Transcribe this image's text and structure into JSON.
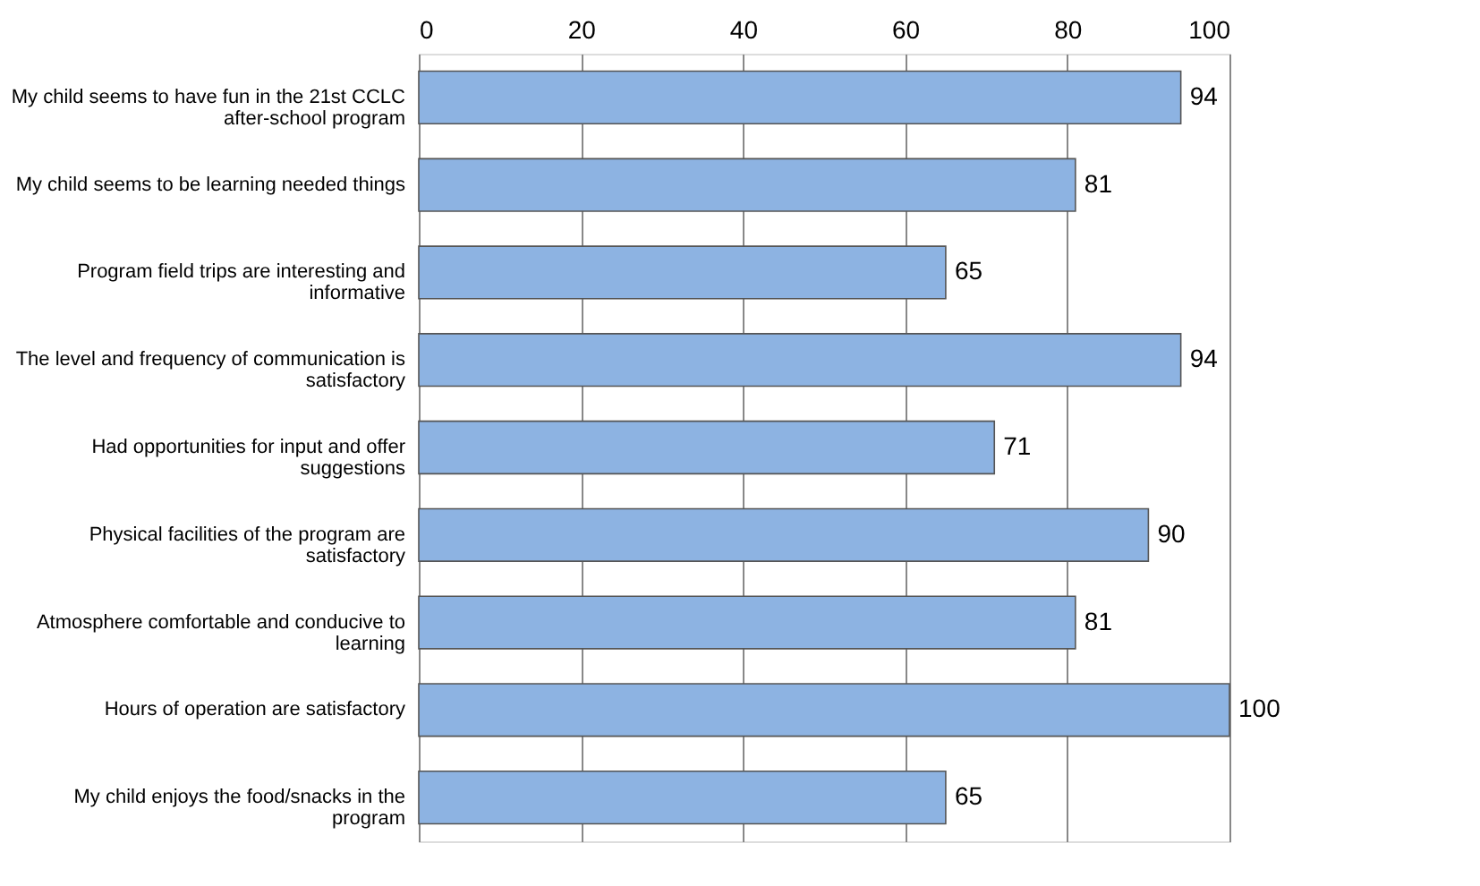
{
  "chart_data": {
    "type": "bar",
    "orientation": "horizontal",
    "categories": [
      "My child seems to have fun in the 21st CCLC after-school program",
      "My child seems to be learning needed things",
      "Program field trips are interesting and informative",
      "The level and frequency of communication is satisfactory",
      "Had opportunities for input and offer suggestions",
      "Physical facilities of the program are satisfactory",
      "Atmosphere comfortable and conducive to learning",
      "Hours of operation are satisfactory",
      "My child enjoys the food/snacks in the program"
    ],
    "values": [
      94,
      81,
      65,
      94,
      71,
      90,
      81,
      100,
      65
    ],
    "color": "#8db3e2",
    "xlim": [
      0,
      100
    ],
    "xticks": [
      0,
      20,
      40,
      60,
      80,
      100
    ],
    "grid": "x",
    "data_labels": true
  }
}
